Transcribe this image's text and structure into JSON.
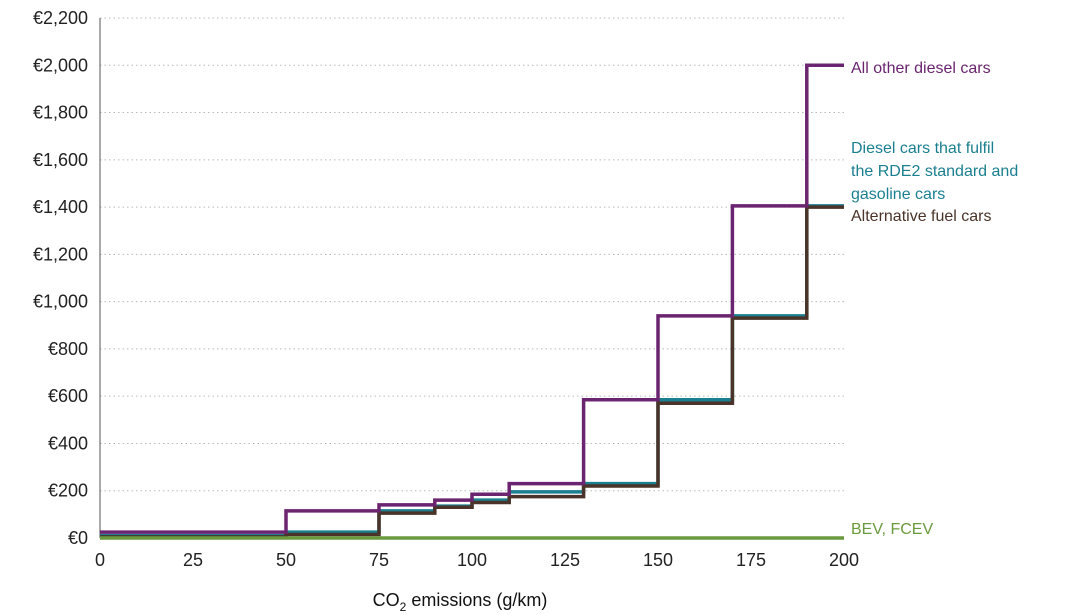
{
  "chart_data": {
    "type": "line",
    "step": true,
    "xlabel": {
      "prefix": "CO",
      "subscript": "2",
      "suffix": " emissions (g/km)"
    },
    "ylabel": "",
    "xlim": [
      0,
      200
    ],
    "ylim": [
      0,
      2200
    ],
    "xticks": [
      0,
      25,
      50,
      75,
      100,
      125,
      150,
      175,
      200
    ],
    "yticks": [
      0,
      200,
      400,
      600,
      800,
      1000,
      1200,
      1400,
      1600,
      1800,
      2000,
      2200
    ],
    "ytick_labels": [
      "€0",
      "€200",
      "€400",
      "€600",
      "€800",
      "€1,000",
      "€1,200",
      "€1,400",
      "€1,600",
      "€1,800",
      "€2,000",
      "€2,200"
    ],
    "grid": "horizontal-dotted",
    "legend": "direct labels at right end of lines",
    "series": [
      {
        "name": "All other diesel cars",
        "color": "#6b2470",
        "breaks": [
          0,
          50,
          75,
          90,
          100,
          110,
          130,
          150,
          170,
          190,
          200
        ],
        "values": [
          25,
          115,
          140,
          160,
          185,
          230,
          585,
          940,
          1405,
          2000
        ]
      },
      {
        "name": "Diesel cars that fulfil the RDE2 standard and gasoline cars",
        "name_lines": [
          "Diesel cars that fulfil",
          "the RDE2 standard and",
          "gasoline cars"
        ],
        "color": "#1a7f8f",
        "breaks": [
          0,
          50,
          75,
          90,
          100,
          110,
          130,
          150,
          170,
          190,
          200
        ],
        "values": [
          10,
          25,
          115,
          135,
          160,
          195,
          230,
          585,
          940,
          1405
        ]
      },
      {
        "name": "Alternative fuel cars",
        "color": "#4a3328",
        "breaks": [
          0,
          50,
          75,
          90,
          100,
          110,
          130,
          150,
          170,
          190,
          200
        ],
        "values": [
          5,
          15,
          105,
          130,
          150,
          175,
          220,
          570,
          930,
          1400
        ]
      },
      {
        "name": "BEV, FCEV",
        "color": "#6a9a3e",
        "breaks": [
          0,
          200
        ],
        "values": [
          0
        ]
      }
    ]
  }
}
